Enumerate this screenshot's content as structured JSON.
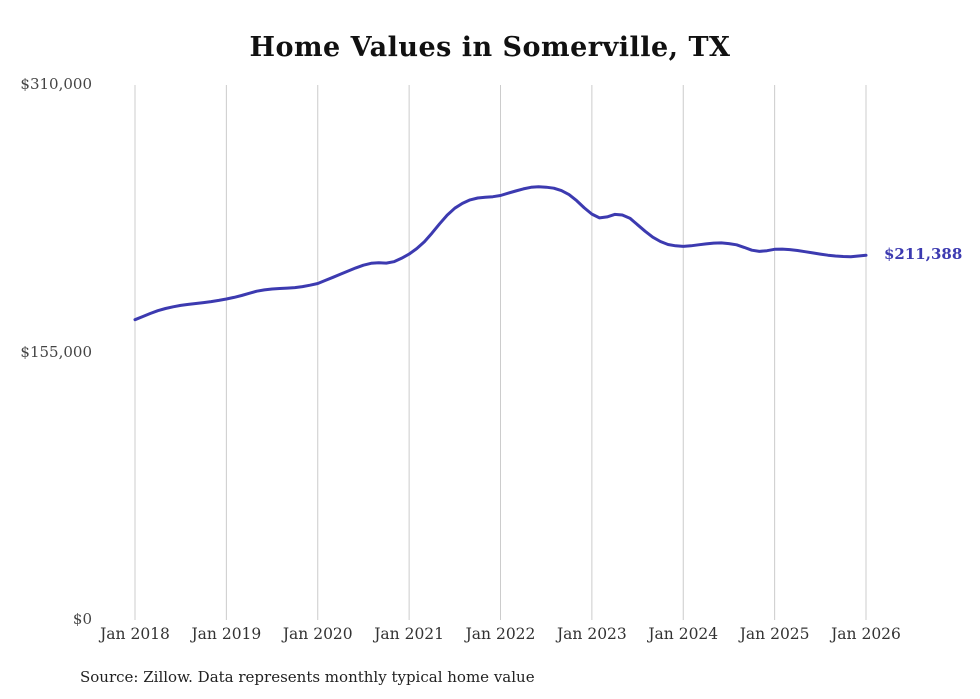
{
  "title": "Home Values in Somerville, TX",
  "source": "Source: Zillow. Data represents monthly typical home value",
  "colors": {
    "line": "#3c3ab0",
    "grid": "#cccccc",
    "axis_text": "#444444",
    "end_label": "#3c3ab0"
  },
  "chart_data": {
    "type": "line",
    "title": "Home Values in Somerville, TX",
    "xlabel": "",
    "ylabel": "",
    "ylim": [
      0,
      310000
    ],
    "grid": "vertical-only",
    "legend": "none",
    "x_tick_labels": [
      "Jan 2018",
      "Jan 2019",
      "Jan 2020",
      "Jan 2021",
      "Jan 2022",
      "Jan 2023",
      "Jan 2024",
      "Jan 2025",
      "Jan 2026"
    ],
    "y_ticks": [
      {
        "label": "$0",
        "value": 0
      },
      {
        "label": "$155,000",
        "value": 155000
      },
      {
        "label": "$310,000",
        "value": 310000
      }
    ],
    "end_label": "$211,388",
    "end_value": 211388,
    "series": [
      {
        "name": "Typical home value",
        "start": "Jan 2018",
        "end": "Jan 2026",
        "interval": "monthly",
        "values": [
          174000,
          175800,
          177600,
          179200,
          180500,
          181500,
          182300,
          182900,
          183400,
          183900,
          184500,
          185200,
          186000,
          186900,
          188000,
          189300,
          190500,
          191300,
          191800,
          192100,
          192300,
          192600,
          193200,
          194000,
          195000,
          196800,
          198600,
          200400,
          202200,
          204000,
          205600,
          206700,
          207000,
          206800,
          207600,
          209600,
          212000,
          215200,
          219200,
          224200,
          229600,
          234600,
          238600,
          241400,
          243400,
          244500,
          244900,
          245300,
          246000,
          247300,
          248600,
          249800,
          250700,
          251000,
          250800,
          250200,
          248800,
          246500,
          243000,
          238800,
          235200,
          233000,
          233600,
          235000,
          234700,
          232800,
          229000,
          225200,
          221800,
          219300,
          217600,
          216800,
          216500,
          216800,
          217400,
          217900,
          218400,
          218500,
          218100,
          217400,
          215900,
          214300,
          213600,
          214000,
          214800,
          214900,
          214600,
          214100,
          213400,
          212700,
          212000,
          211400,
          210900,
          210600,
          210500,
          210900,
          211388
        ]
      }
    ]
  }
}
